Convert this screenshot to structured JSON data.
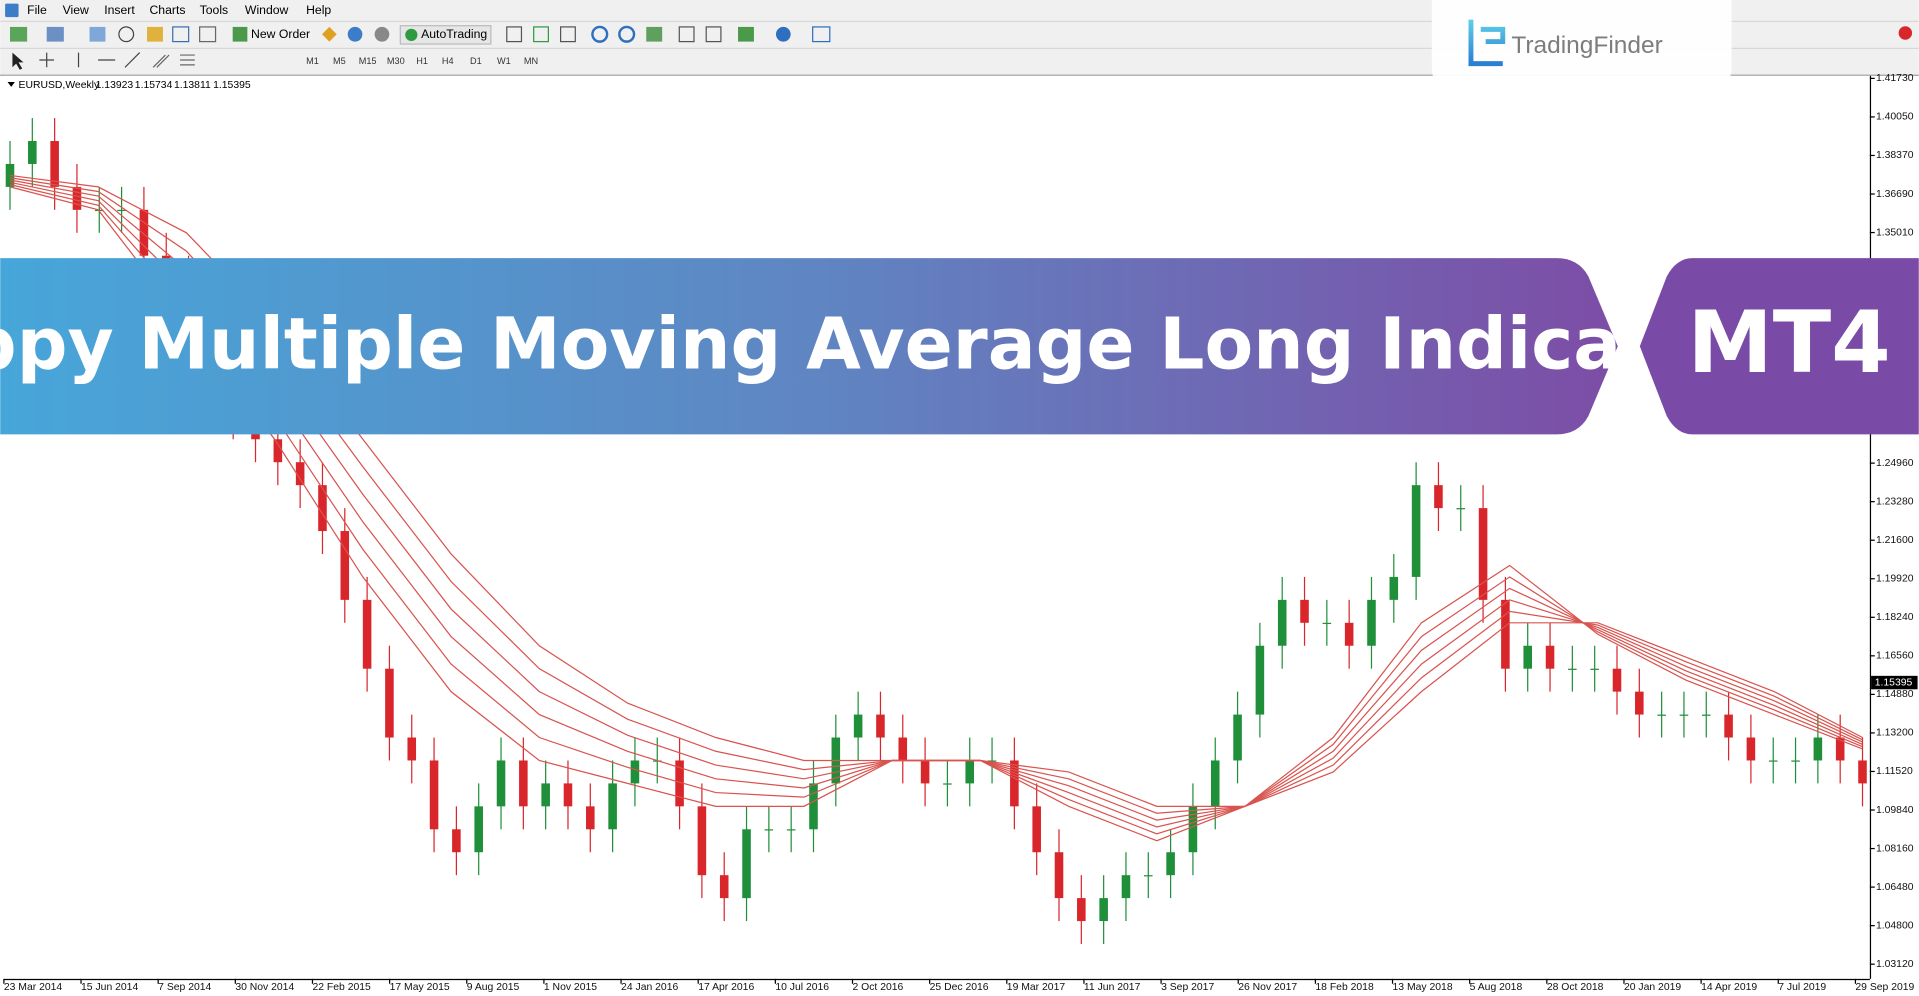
{
  "menu": [
    "File",
    "View",
    "Insert",
    "Charts",
    "Tools",
    "Window",
    "Help"
  ],
  "toolbar": {
    "new_order": "New Order",
    "auto_trading": "AutoTrading",
    "timeframes": [
      "M1",
      "M5",
      "M15",
      "M30",
      "H1",
      "H4",
      "D1",
      "W1",
      "MN"
    ]
  },
  "logo": "TradingFinder",
  "banner": {
    "title": "Guppy Multiple Moving Average Long Indicator",
    "badge": "MT4"
  },
  "chart_data": {
    "type": "candlestick",
    "symbol": "EURUSD,Weekly",
    "header_values": [
      1.13923,
      1.15734,
      1.13811,
      1.15395
    ],
    "ylim": [
      1.0248,
      1.4184
    ],
    "yticks": [
      {
        "value": 1.4173,
        "label": "1.41730"
      },
      {
        "value": 1.4005,
        "label": "1.40050"
      },
      {
        "value": 1.3837,
        "label": "1.38370"
      },
      {
        "value": 1.3669,
        "label": "1.36690"
      },
      {
        "value": 1.3501,
        "label": "1.35010"
      },
      {
        "value": 1.2496,
        "label": "1.24960"
      },
      {
        "value": 1.2328,
        "label": "1.23280"
      },
      {
        "value": 1.216,
        "label": "1.21600"
      },
      {
        "value": 1.1992,
        "label": "1.19920"
      },
      {
        "value": 1.1824,
        "label": "1.18240"
      },
      {
        "value": 1.1656,
        "label": "1.16560"
      },
      {
        "value": 1.1488,
        "label": "1.14880"
      },
      {
        "value": 1.132,
        "label": "1.13200"
      },
      {
        "value": 1.1152,
        "label": "1.11520"
      },
      {
        "value": 1.0984,
        "label": "1.09840"
      },
      {
        "value": 1.0816,
        "label": "1.08160"
      },
      {
        "value": 1.0648,
        "label": "1.06480"
      },
      {
        "value": 1.048,
        "label": "1.04800"
      },
      {
        "value": 1.0312,
        "label": "1.03120"
      }
    ],
    "x_labels": [
      "23 Mar 2014",
      "15 Jun 2014",
      "7 Sep 2014",
      "30 Nov 2014",
      "22 Feb 2015",
      "17 May 2015",
      "9 Aug 2015",
      "1 Nov 2015",
      "24 Jan 2016",
      "17 Apr 2016",
      "10 Jul 2016",
      "2 Oct 2016",
      "25 Dec 2016",
      "19 Mar 2017",
      "11 Jun 2017",
      "3 Sep 2017",
      "26 Nov 2017",
      "18 Feb 2018",
      "13 May 2018",
      "5 Aug 2018",
      "28 Oct 2018",
      "20 Jan 2019",
      "14 Apr 2019",
      "7 Jul 2019",
      "29 Sep 2019"
    ],
    "up_color": "#1f8f3a",
    "down_color": "#d9262b",
    "candles": {
      "open": [
        1.37,
        1.38,
        1.39,
        1.37,
        1.36,
        1.36,
        1.36,
        1.34,
        1.33,
        1.31,
        1.29,
        1.27,
        1.26,
        1.25,
        1.24,
        1.22,
        1.19,
        1.16,
        1.13,
        1.12,
        1.09,
        1.08,
        1.1,
        1.12,
        1.1,
        1.11,
        1.1,
        1.09,
        1.11,
        1.12,
        1.12,
        1.1,
        1.07,
        1.06,
        1.09,
        1.09,
        1.09,
        1.11,
        1.13,
        1.14,
        1.13,
        1.12,
        1.11,
        1.11,
        1.12,
        1.12,
        1.1,
        1.08,
        1.06,
        1.05,
        1.06,
        1.07,
        1.07,
        1.08,
        1.1,
        1.12,
        1.14,
        1.17,
        1.19,
        1.18,
        1.18,
        1.17,
        1.19,
        1.2,
        1.24,
        1.23,
        1.23,
        1.19,
        1.16,
        1.17,
        1.16,
        1.16,
        1.16,
        1.15,
        1.14,
        1.14,
        1.14,
        1.14,
        1.13,
        1.12,
        1.12,
        1.12,
        1.13,
        1.12
      ],
      "high": [
        1.39,
        1.4,
        1.4,
        1.38,
        1.37,
        1.37,
        1.37,
        1.35,
        1.34,
        1.32,
        1.3,
        1.28,
        1.27,
        1.26,
        1.25,
        1.23,
        1.2,
        1.17,
        1.14,
        1.13,
        1.1,
        1.11,
        1.13,
        1.13,
        1.12,
        1.12,
        1.11,
        1.12,
        1.13,
        1.13,
        1.13,
        1.11,
        1.08,
        1.1,
        1.1,
        1.1,
        1.12,
        1.14,
        1.15,
        1.15,
        1.14,
        1.13,
        1.12,
        1.13,
        1.13,
        1.13,
        1.11,
        1.09,
        1.07,
        1.07,
        1.08,
        1.08,
        1.09,
        1.11,
        1.13,
        1.15,
        1.18,
        1.2,
        1.2,
        1.19,
        1.19,
        1.2,
        1.21,
        1.25,
        1.25,
        1.24,
        1.24,
        1.2,
        1.18,
        1.18,
        1.17,
        1.17,
        1.17,
        1.16,
        1.15,
        1.15,
        1.15,
        1.15,
        1.14,
        1.13,
        1.13,
        1.14,
        1.14,
        1.13
      ],
      "low": [
        1.36,
        1.37,
        1.36,
        1.35,
        1.35,
        1.35,
        1.33,
        1.32,
        1.3,
        1.28,
        1.26,
        1.25,
        1.24,
        1.23,
        1.21,
        1.18,
        1.15,
        1.12,
        1.11,
        1.08,
        1.07,
        1.07,
        1.09,
        1.09,
        1.09,
        1.09,
        1.08,
        1.08,
        1.1,
        1.11,
        1.09,
        1.06,
        1.05,
        1.05,
        1.08,
        1.08,
        1.08,
        1.1,
        1.12,
        1.12,
        1.11,
        1.1,
        1.1,
        1.1,
        1.11,
        1.09,
        1.07,
        1.05,
        1.04,
        1.04,
        1.05,
        1.06,
        1.06,
        1.07,
        1.09,
        1.11,
        1.13,
        1.16,
        1.17,
        1.17,
        1.16,
        1.16,
        1.18,
        1.19,
        1.22,
        1.22,
        1.18,
        1.15,
        1.15,
        1.15,
        1.15,
        1.15,
        1.14,
        1.13,
        1.13,
        1.13,
        1.13,
        1.12,
        1.11,
        1.11,
        1.11,
        1.11,
        1.11,
        1.1
      ],
      "close": [
        1.38,
        1.39,
        1.37,
        1.36,
        1.36,
        1.36,
        1.34,
        1.33,
        1.31,
        1.29,
        1.27,
        1.26,
        1.25,
        1.24,
        1.22,
        1.19,
        1.16,
        1.13,
        1.12,
        1.09,
        1.08,
        1.1,
        1.12,
        1.1,
        1.11,
        1.1,
        1.09,
        1.11,
        1.12,
        1.12,
        1.1,
        1.07,
        1.06,
        1.09,
        1.09,
        1.09,
        1.11,
        1.13,
        1.14,
        1.13,
        1.12,
        1.11,
        1.11,
        1.12,
        1.12,
        1.1,
        1.08,
        1.06,
        1.05,
        1.06,
        1.07,
        1.07,
        1.08,
        1.1,
        1.12,
        1.14,
        1.17,
        1.19,
        1.18,
        1.18,
        1.17,
        1.19,
        1.2,
        1.24,
        1.23,
        1.23,
        1.19,
        1.16,
        1.17,
        1.16,
        1.16,
        1.16,
        1.15,
        1.14,
        1.14,
        1.14,
        1.14,
        1.13,
        1.12,
        1.12,
        1.12,
        1.13,
        1.12,
        1.11
      ]
    },
    "series": [
      {
        "color": "#d9534f",
        "values": [
          1.37,
          1.36,
          1.31,
          1.26,
          1.2,
          1.15,
          1.12,
          1.11,
          1.1,
          1.1,
          1.12,
          1.12,
          1.1,
          1.085,
          1.1,
          1.13,
          1.18,
          1.205,
          1.175,
          1.155,
          1.14,
          1.125
        ]
      },
      {
        "color": "#d9534f",
        "values": [
          1.371,
          1.362,
          1.318,
          1.27,
          1.212,
          1.162,
          1.13,
          1.117,
          1.106,
          1.104,
          1.12,
          1.12,
          1.103,
          1.088,
          1.1,
          1.127,
          1.174,
          1.2,
          1.176,
          1.157,
          1.142,
          1.126
        ]
      },
      {
        "color": "#d9534f",
        "values": [
          1.372,
          1.364,
          1.326,
          1.28,
          1.224,
          1.174,
          1.14,
          1.124,
          1.112,
          1.108,
          1.12,
          1.12,
          1.106,
          1.091,
          1.1,
          1.124,
          1.168,
          1.195,
          1.177,
          1.159,
          1.144,
          1.127
        ]
      },
      {
        "color": "#d9534f",
        "values": [
          1.373,
          1.366,
          1.334,
          1.29,
          1.236,
          1.186,
          1.15,
          1.131,
          1.118,
          1.112,
          1.12,
          1.12,
          1.109,
          1.094,
          1.1,
          1.121,
          1.162,
          1.19,
          1.178,
          1.161,
          1.146,
          1.128
        ]
      },
      {
        "color": "#d9534f",
        "values": [
          1.374,
          1.368,
          1.342,
          1.3,
          1.248,
          1.198,
          1.16,
          1.138,
          1.124,
          1.116,
          1.12,
          1.12,
          1.112,
          1.097,
          1.1,
          1.118,
          1.156,
          1.185,
          1.179,
          1.163,
          1.148,
          1.129
        ]
      },
      {
        "color": "#d9534f",
        "values": [
          1.375,
          1.37,
          1.35,
          1.31,
          1.26,
          1.21,
          1.17,
          1.145,
          1.13,
          1.12,
          1.12,
          1.12,
          1.115,
          1.1,
          1.1,
          1.115,
          1.15,
          1.18,
          1.18,
          1.165,
          1.15,
          1.13
        ]
      }
    ]
  }
}
